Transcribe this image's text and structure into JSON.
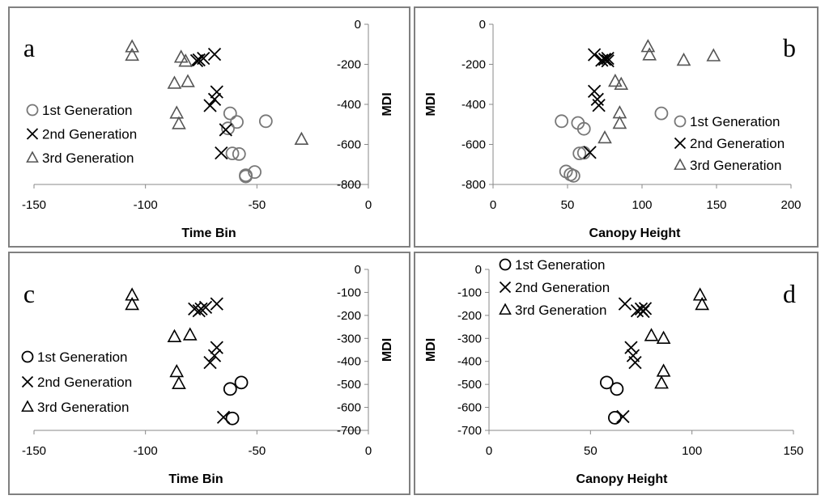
{
  "chart_data": [
    {
      "type": "scatter",
      "panel_letter": "a",
      "xlabel": "Time Bin",
      "ylabel": "MDI",
      "xlim": [
        -150,
        0
      ],
      "ylim": [
        -800,
        0
      ],
      "xticks": [
        -150,
        -100,
        -50,
        0
      ],
      "yticks": [
        0,
        -200,
        -400,
        -600,
        -800
      ],
      "legend_position": "left-middle",
      "series": [
        {
          "name": "1st Generation",
          "marker": "circle",
          "color": "#777777",
          "points": [
            [
              -62,
              -445
            ],
            [
              -59,
              -488
            ],
            [
              -63,
              -520
            ],
            [
              -46,
              -484
            ],
            [
              -61,
              -645
            ],
            [
              -58,
              -648
            ],
            [
              -51,
              -738
            ],
            [
              -55,
              -754
            ],
            [
              -55,
              -760
            ]
          ]
        },
        {
          "name": "2nd Generation",
          "marker": "x",
          "color": "#000000",
          "points": [
            [
              -69,
              -150
            ],
            [
              -74,
              -170
            ],
            [
              -76,
              -178
            ],
            [
              -77,
              -182
            ],
            [
              -68,
              -338
            ],
            [
              -69,
              -375
            ],
            [
              -71,
              -406
            ],
            [
              -64,
              -527
            ],
            [
              -66,
              -643
            ]
          ]
        },
        {
          "name": "3rd Generation",
          "marker": "triangle",
          "color": "#555555",
          "points": [
            [
              -106,
              -113
            ],
            [
              -106,
              -155
            ],
            [
              -84,
              -165
            ],
            [
              -82,
              -185
            ],
            [
              -87,
              -295
            ],
            [
              -81,
              -287
            ],
            [
              -86,
              -444
            ],
            [
              -85,
              -497
            ],
            [
              -30,
              -575
            ]
          ]
        }
      ]
    },
    {
      "type": "scatter",
      "panel_letter": "b",
      "xlabel": "Canopy Height",
      "ylabel": "MDI",
      "xlim": [
        0,
        200
      ],
      "ylim": [
        -800,
        0
      ],
      "xticks": [
        0,
        50,
        100,
        150,
        200
      ],
      "yticks": [
        0,
        -200,
        -400,
        -600,
        -800
      ],
      "legend_position": "right-middle",
      "series": [
        {
          "name": "1st Generation",
          "marker": "circle",
          "color": "#777777",
          "points": [
            [
              46,
              -484
            ],
            [
              57,
              -493
            ],
            [
              61,
              -522
            ],
            [
              58,
              -645
            ],
            [
              61,
              -642
            ],
            [
              49,
              -735
            ],
            [
              52,
              -750
            ],
            [
              54,
              -757
            ],
            [
              113,
              -445
            ]
          ]
        },
        {
          "name": "2nd Generation",
          "marker": "x",
          "color": "#000000",
          "points": [
            [
              68,
              -152
            ],
            [
              73,
              -180
            ],
            [
              75,
              -175
            ],
            [
              77,
              -170
            ],
            [
              77,
              -183
            ],
            [
              68,
              -335
            ],
            [
              70,
              -375
            ],
            [
              71,
              -405
            ],
            [
              65,
              -640
            ]
          ]
        },
        {
          "name": "3rd Generation",
          "marker": "triangle",
          "color": "#555555",
          "points": [
            [
              104,
              -112
            ],
            [
              105,
              -153
            ],
            [
              128,
              -180
            ],
            [
              148,
              -158
            ],
            [
              82,
              -285
            ],
            [
              86,
              -300
            ],
            [
              85,
              -443
            ],
            [
              85,
              -495
            ],
            [
              75,
              -568
            ]
          ]
        }
      ]
    },
    {
      "type": "scatter",
      "panel_letter": "c",
      "xlabel": "Time Bin",
      "ylabel": "MDI",
      "xlim": [
        -150,
        0
      ],
      "ylim": [
        -700,
        0
      ],
      "xticks": [
        -150,
        -100,
        -50,
        0
      ],
      "yticks": [
        0,
        -100,
        -200,
        -300,
        -400,
        -500,
        -600,
        -700
      ],
      "legend_position": "left-middle",
      "series": [
        {
          "name": "1st Generation",
          "marker": "circle",
          "color": "#000000",
          "points": [
            [
              -57,
              -492
            ],
            [
              -62,
              -520
            ],
            [
              -61,
              -648
            ]
          ]
        },
        {
          "name": "2nd Generation",
          "marker": "x",
          "color": "#000000",
          "points": [
            [
              -68,
              -150
            ],
            [
              -73,
              -165
            ],
            [
              -75,
              -172
            ],
            [
              -76,
              -180
            ],
            [
              -78,
              -172
            ],
            [
              -68,
              -340
            ],
            [
              -69,
              -375
            ],
            [
              -71,
              -405
            ],
            [
              -65,
              -643
            ]
          ]
        },
        {
          "name": "3rd Generation",
          "marker": "triangle",
          "color": "#000000",
          "points": [
            [
              -106,
              -112
            ],
            [
              -106,
              -153
            ],
            [
              -87,
              -293
            ],
            [
              -80,
              -285
            ],
            [
              -86,
              -445
            ],
            [
              -85,
              -497
            ]
          ]
        }
      ]
    },
    {
      "type": "scatter",
      "panel_letter": "d",
      "xlabel": "Canopy Height",
      "ylabel": "MDI",
      "xlim": [
        0,
        150
      ],
      "ylim": [
        -700,
        0
      ],
      "xticks": [
        0,
        50,
        100,
        150
      ],
      "yticks": [
        0,
        -100,
        -200,
        -300,
        -400,
        -500,
        -600,
        -700
      ],
      "legend_position": "top-left",
      "series": [
        {
          "name": "1st Generation",
          "marker": "circle",
          "color": "#000000",
          "points": [
            [
              58,
              -492
            ],
            [
              63,
              -520
            ],
            [
              62,
              -645
            ]
          ]
        },
        {
          "name": "2nd Generation",
          "marker": "x",
          "color": "#000000",
          "points": [
            [
              67,
              -150
            ],
            [
              73,
              -180
            ],
            [
              75,
              -172
            ],
            [
              77,
              -170
            ],
            [
              76,
              -183
            ],
            [
              70,
              -340
            ],
            [
              71,
              -375
            ],
            [
              72,
              -405
            ],
            [
              66,
              -640
            ]
          ]
        },
        {
          "name": "3rd Generation",
          "marker": "triangle",
          "color": "#000000",
          "points": [
            [
              104,
              -112
            ],
            [
              105,
              -153
            ],
            [
              80,
              -288
            ],
            [
              86,
              -300
            ],
            [
              86,
              -443
            ],
            [
              85,
              -495
            ]
          ]
        }
      ]
    }
  ]
}
